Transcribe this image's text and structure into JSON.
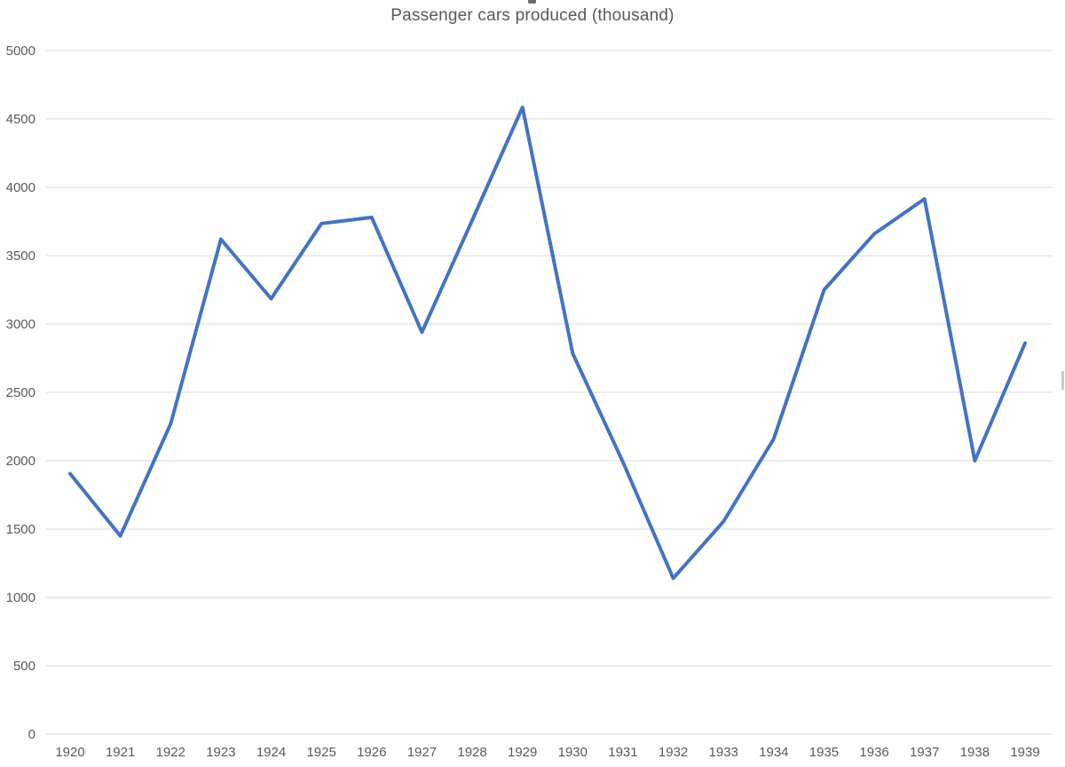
{
  "chart_data": {
    "type": "line",
    "title": "Passenger cars produced (thousand)",
    "categories": [
      "1920",
      "1921",
      "1922",
      "1923",
      "1924",
      "1925",
      "1926",
      "1927",
      "1928",
      "1929",
      "1930",
      "1931",
      "1932",
      "1933",
      "1934",
      "1935",
      "1936",
      "1937",
      "1938",
      "1939"
    ],
    "values": [
      1905,
      1450,
      2270,
      3620,
      3185,
      3735,
      3780,
      2940,
      3760,
      4585,
      2785,
      1990,
      1140,
      1555,
      2160,
      3250,
      3660,
      3915,
      2000,
      2860
    ],
    "xlabel": "",
    "ylabel": "",
    "ylim": [
      0,
      5000
    ],
    "y_ticks": [
      0,
      500,
      1000,
      1500,
      2000,
      2500,
      3000,
      3500,
      4000,
      4500,
      5000
    ],
    "grid": true,
    "legend": false,
    "line_color": "#4472C4",
    "grid_color": "#D9D9D9",
    "tick_label_color": "#595959",
    "title_color": "#595959"
  }
}
